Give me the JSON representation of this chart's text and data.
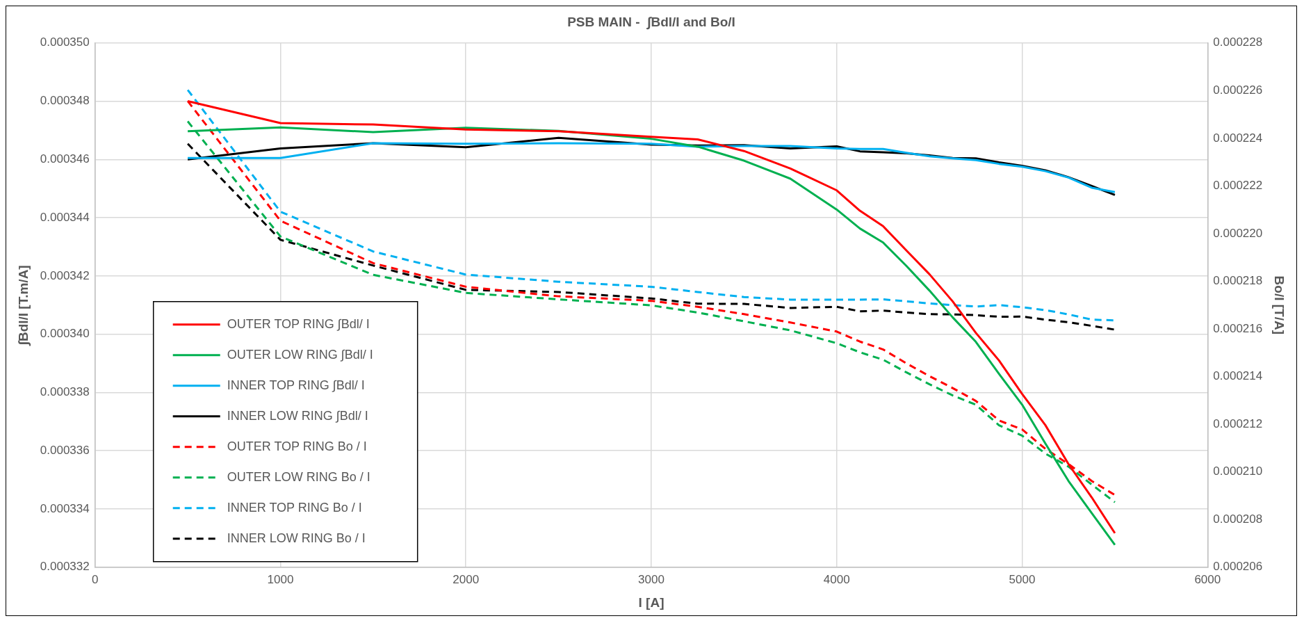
{
  "chart_data": {
    "type": "line",
    "title": "PSB MAIN -  ∫Bdl/I and Bo/I",
    "xlabel": "I [A]",
    "ylabel": "∫Bdl/I [T.m/A]",
    "y2label": "Bo/I [T/A]",
    "x": [
      500,
      1000,
      1500,
      2000,
      2500,
      3000,
      3250,
      3500,
      3750,
      4000,
      4125,
      4250,
      4375,
      4500,
      4625,
      4750,
      4875,
      5000,
      5125,
      5250,
      5375,
      5500
    ],
    "series": [
      {
        "name": "OUTER TOP RING ∫Bdl/ I",
        "color": "#ff0000",
        "values": [
          0.000348,
          0.00034725,
          0.0003472,
          0.00034703,
          0.00034697,
          0.00034678,
          0.00034669,
          0.00034629,
          0.00034569,
          0.00034494,
          0.00034424,
          0.00034371,
          0.00034288,
          0.00034206,
          0.00034113,
          0.00034005,
          0.0003391,
          0.00033795,
          0.00033688,
          0.00033554,
          0.0003344,
          0.00033317
        ]
      },
      {
        "name": "OUTER LOW RING ∫Bdl/ I",
        "color": "#00b050",
        "values": [
          0.00034697,
          0.0003471,
          0.00034694,
          0.00034709,
          0.00034698,
          0.00034671,
          0.00034644,
          0.00034596,
          0.00034534,
          0.00034428,
          0.00034363,
          0.00034315,
          0.00034235,
          0.0003415,
          0.00034058,
          0.00033974,
          0.00033864,
          0.00033758,
          0.00033625,
          0.00033496,
          0.00033386,
          0.00033277
        ]
      },
      {
        "name": "INNER TOP RING ∫Bdl/ I",
        "color": "#00b0f0",
        "values": [
          0.00034605,
          0.00034605,
          0.00034656,
          0.00034654,
          0.00034656,
          0.00034654,
          0.00034644,
          0.00034646,
          0.00034646,
          0.00034638,
          0.00034636,
          0.00034636,
          0.00034623,
          0.00034611,
          0.00034604,
          0.00034598,
          0.00034585,
          0.00034575,
          0.0003456,
          0.00034538,
          0.00034503,
          0.00034488
        ]
      },
      {
        "name": "INNER LOW RING ∫Bdl/ I",
        "color": "#000000",
        "values": [
          0.000346,
          0.00034638,
          0.00034656,
          0.00034642,
          0.00034674,
          0.00034651,
          0.00034648,
          0.00034649,
          0.00034638,
          0.00034645,
          0.00034628,
          0.00034625,
          0.00034621,
          0.00034614,
          0.00034605,
          0.00034604,
          0.0003459,
          0.00034578,
          0.00034563,
          0.00034539,
          0.00034509,
          0.00034478
        ]
      },
      {
        "name": "OUTER TOP RING Bo / I",
        "color": "#ff0000",
        "axis": "y2",
        "line_style": "dashed",
        "values": [
          0.00022556,
          0.00022054,
          0.00021876,
          0.00021777,
          0.00021737,
          0.00021718,
          0.00021693,
          0.00021662,
          0.00021627,
          0.00021589,
          0.00021547,
          0.00021514,
          0.00021456,
          0.00021402,
          0.00021352,
          0.00021298,
          0.00021216,
          0.00021178,
          0.00021097,
          0.00021033,
          0.00020962,
          0.00020903
        ]
      },
      {
        "name": "OUTER LOW RING Bo / I",
        "color": "#00b050",
        "axis": "y2",
        "line_style": "dashed",
        "values": [
          0.00022471,
          0.00021988,
          0.00021827,
          0.00021751,
          0.00021724,
          0.00021699,
          0.00021669,
          0.00021632,
          0.00021594,
          0.0002154,
          0.00021502,
          0.00021471,
          0.00021418,
          0.00021368,
          0.00021321,
          0.00021282,
          0.00021196,
          0.00021152,
          0.00021077,
          0.00021022,
          0.00020947,
          0.00020873
        ]
      },
      {
        "name": "INNER TOP RING Bo / I",
        "color": "#00b0f0",
        "axis": "y2",
        "line_style": "dashed",
        "values": [
          0.00022603,
          0.00022092,
          0.00021925,
          0.00021828,
          0.00021798,
          0.00021777,
          0.00021755,
          0.00021734,
          0.00021723,
          0.00021723,
          0.00021723,
          0.00021724,
          0.00021716,
          0.00021707,
          0.000217,
          0.00021694,
          0.000217,
          0.00021691,
          0.00021679,
          0.00021661,
          0.00021639,
          0.00021636
        ]
      },
      {
        "name": "INNER LOW RING Bo / I",
        "color": "#000000",
        "axis": "y2",
        "line_style": "dashed",
        "values": [
          0.00022377,
          0.00021974,
          0.00021866,
          0.00021764,
          0.00021755,
          0.00021728,
          0.00021706,
          0.00021705,
          0.00021688,
          0.00021693,
          0.00021674,
          0.00021677,
          0.00021669,
          0.00021662,
          0.00021661,
          0.00021658,
          0.00021651,
          0.00021652,
          0.00021639,
          0.00021628,
          0.00021613,
          0.00021597
        ]
      }
    ],
    "xlim": [
      0,
      6000
    ],
    "xticks": [
      0,
      1000,
      2000,
      3000,
      4000,
      5000,
      6000
    ],
    "ylim": [
      0.000332,
      0.00035
    ],
    "yticks": [
      {
        "value": 0.000332,
        "label": "0.000332"
      },
      {
        "value": 0.000334,
        "label": "0.000334"
      },
      {
        "value": 0.000336,
        "label": "0.000336"
      },
      {
        "value": 0.000338,
        "label": "0.000338"
      },
      {
        "value": 0.00034,
        "label": "0.000340"
      },
      {
        "value": 0.000342,
        "label": "0.000342"
      },
      {
        "value": 0.000344,
        "label": "0.000344"
      },
      {
        "value": 0.000346,
        "label": "0.000346"
      },
      {
        "value": 0.000348,
        "label": "0.000348"
      },
      {
        "value": 0.00035,
        "label": "0.000350"
      }
    ],
    "y2lim": [
      0.000206,
      0.000228
    ],
    "y2ticks": [
      {
        "value": 0.000206,
        "label": "0.000206"
      },
      {
        "value": 0.000208,
        "label": "0.000208"
      },
      {
        "value": 0.00021,
        "label": "0.000210"
      },
      {
        "value": 0.000212,
        "label": "0.000212"
      },
      {
        "value": 0.000214,
        "label": "0.000214"
      },
      {
        "value": 0.000216,
        "label": "0.000216"
      },
      {
        "value": 0.000218,
        "label": "0.000218"
      },
      {
        "value": 0.00022,
        "label": "0.000220"
      },
      {
        "value": 0.000222,
        "label": "0.000222"
      },
      {
        "value": 0.000224,
        "label": "0.000224"
      },
      {
        "value": 0.000226,
        "label": "0.000226"
      },
      {
        "value": 0.000228,
        "label": "0.000228"
      }
    ],
    "grid": true,
    "legend": "bottom left",
    "marker": "none",
    "line_style": "solid"
  }
}
